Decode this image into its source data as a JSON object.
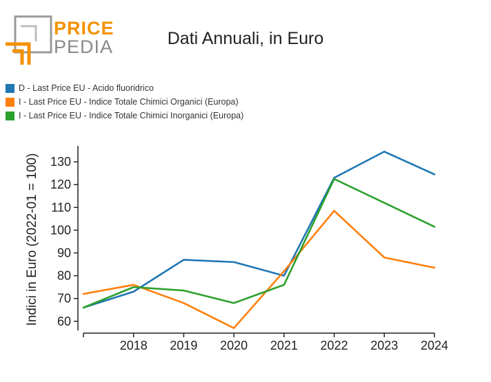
{
  "brand": {
    "word_top": "PRICE",
    "word_bottom": "PEDIA"
  },
  "chart_data": {
    "type": "line",
    "title": "Dati Annuali, in Euro",
    "xlabel": "",
    "ylabel": "Indici in Euro (2022-01 = 100)",
    "x": [
      2017,
      2018,
      2019,
      2020,
      2021,
      2022,
      2023,
      2024
    ],
    "xtick_labels": [
      "2018",
      "2019",
      "2020",
      "2021",
      "2022",
      "2023",
      "2024"
    ],
    "yticks": [
      60,
      70,
      80,
      90,
      100,
      110,
      120,
      130
    ],
    "ylim": [
      56,
      137
    ],
    "xlim": [
      2017,
      2024
    ],
    "legend_position": "top-left",
    "series": [
      {
        "name": "D - Last Price EU - Acido fluoridrico",
        "color": "#1f77b4",
        "values": [
          66,
          73,
          87,
          86,
          80,
          123,
          134.5,
          124.5
        ]
      },
      {
        "name": "I - Last Price EU - Indice Totale Chimici Organici (Europa)",
        "color": "#ff7f0e",
        "values": [
          72,
          76,
          68,
          57,
          82,
          108.5,
          88,
          83.5
        ]
      },
      {
        "name": "I - Last Price EU - Indice Totale Chimici Inorganici (Europa)",
        "color": "#2ca02c",
        "values": [
          66,
          75,
          73.5,
          68,
          76,
          122.5,
          112,
          101.5
        ]
      }
    ]
  }
}
